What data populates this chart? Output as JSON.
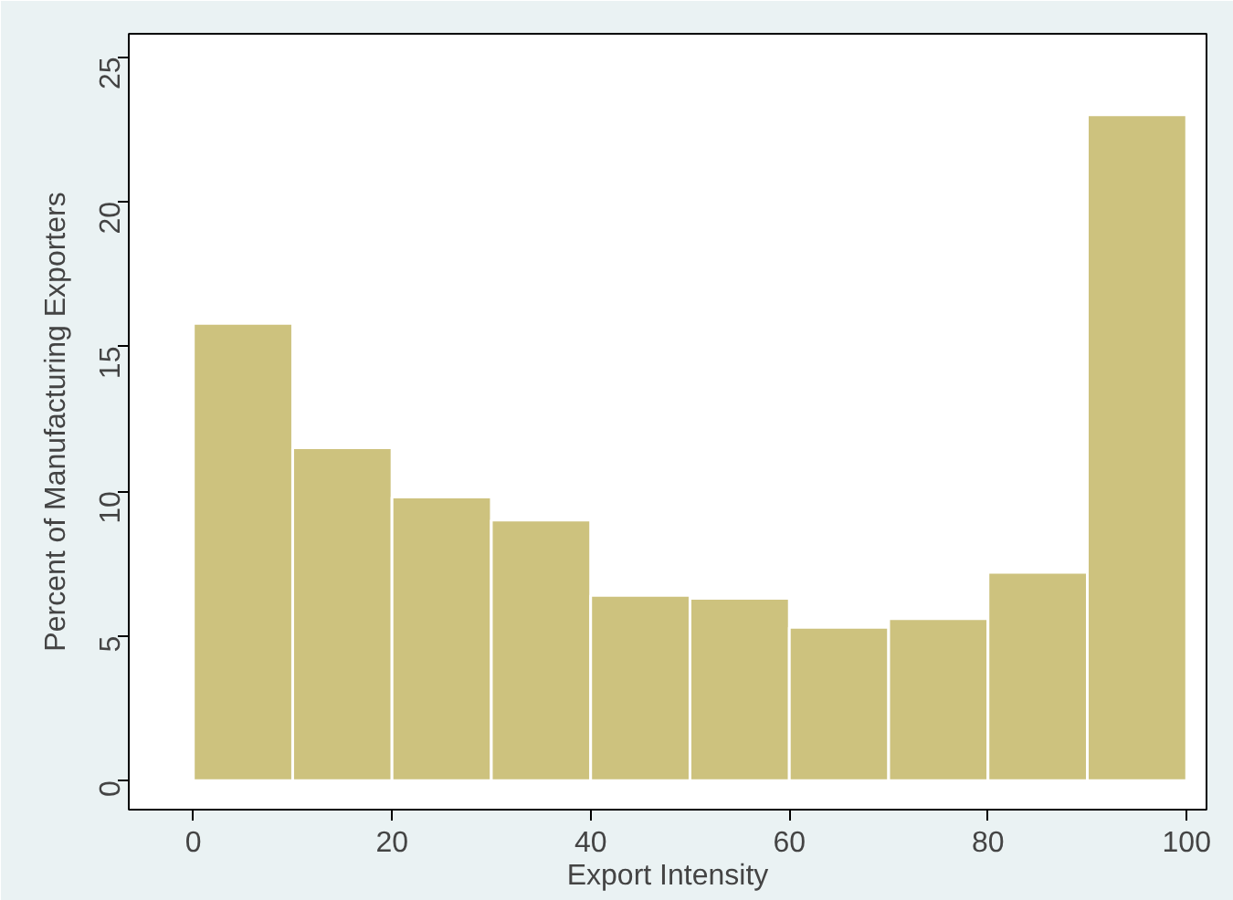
{
  "chart_data": {
    "type": "histogram",
    "xlabel": "Export Intensity",
    "ylabel": "Percent of Manufacturing Exporters",
    "bins": [
      0,
      10,
      20,
      30,
      40,
      50,
      60,
      70,
      80,
      90,
      100
    ],
    "values": [
      15.8,
      11.5,
      9.8,
      9.0,
      6.4,
      6.3,
      5.3,
      5.6,
      7.2,
      23.0
    ],
    "color": "#cdc27e",
    "xlim": [
      -6.5,
      102
    ],
    "ylim": [
      -1,
      25.8
    ],
    "xticks": [
      0,
      20,
      40,
      60,
      80,
      100
    ],
    "yticks": [
      0,
      5,
      10,
      15,
      20,
      25
    ],
    "grid": false
  }
}
